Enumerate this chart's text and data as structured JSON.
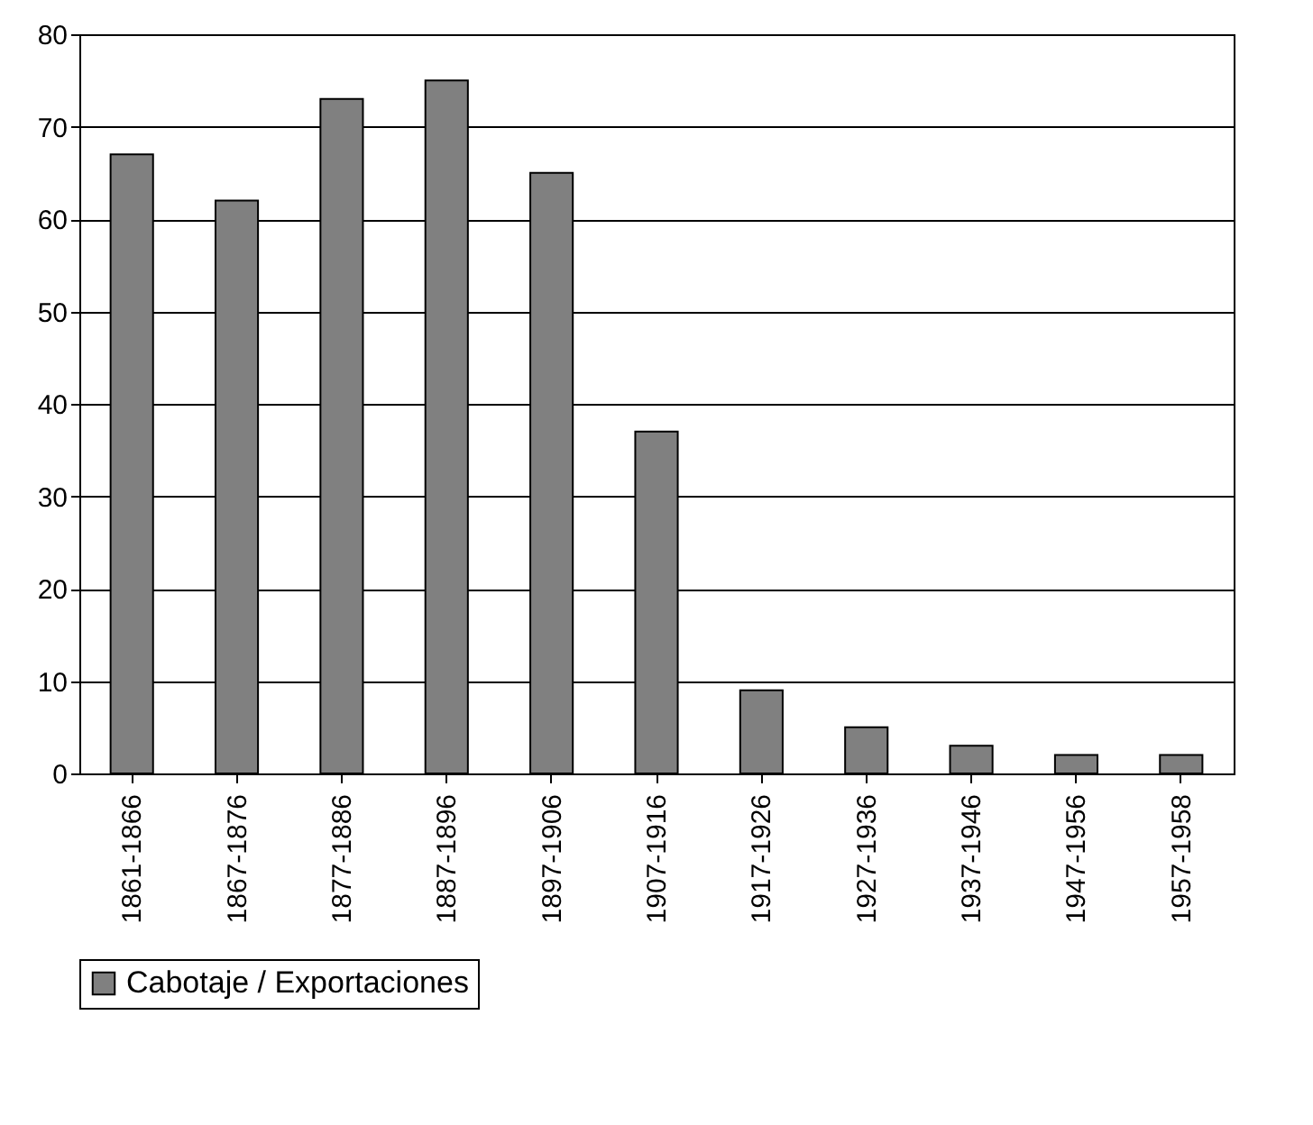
{
  "chart_data": {
    "type": "bar",
    "categories": [
      "1861-1866",
      "1867-1876",
      "1877-1886",
      "1887-1896",
      "1897-1906",
      "1907-1916",
      "1917-1926",
      "1927-1936",
      "1937-1946",
      "1947-1956",
      "1957-1958"
    ],
    "series": [
      {
        "name": "Cabotaje / Exportaciones",
        "color": "#808080",
        "values": [
          67,
          62,
          73,
          75,
          65,
          37,
          9,
          5,
          3,
          2,
          2
        ]
      }
    ],
    "ylim": [
      0,
      80
    ],
    "yticks": [
      0,
      10,
      20,
      30,
      40,
      50,
      60,
      70,
      80
    ],
    "grid": "y",
    "legend": "bottom"
  }
}
